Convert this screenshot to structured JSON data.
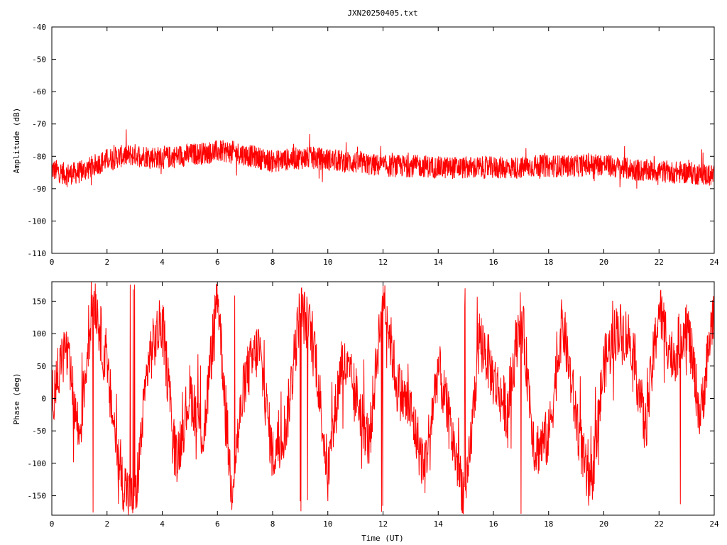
{
  "title": "JXN20250405.txt",
  "colors": {
    "series": "#ff0000",
    "axis": "#000000",
    "background": "#ffffff"
  },
  "chart_data": [
    {
      "type": "line",
      "ylabel": "Amplitude (dB)",
      "xlabel": "",
      "xlim": [
        0,
        24
      ],
      "ylim": [
        -110,
        -40
      ],
      "xticks": [
        0,
        2,
        4,
        6,
        8,
        10,
        12,
        14,
        16,
        18,
        20,
        22,
        24
      ],
      "yticks": [
        -110,
        -100,
        -90,
        -80,
        -70,
        -60,
        -50,
        -40
      ],
      "grid": false,
      "series": [
        {
          "color": "#ff0000",
          "style": "noisy band",
          "x": [
            0,
            0.5,
            1,
            1.5,
            2,
            2.5,
            3,
            3.5,
            4,
            4.5,
            5,
            5.5,
            6,
            6.5,
            7,
            7.5,
            8,
            8.5,
            9,
            9.5,
            10,
            10.5,
            11,
            11.5,
            12,
            12.5,
            13,
            13.5,
            14,
            14.5,
            15,
            15.5,
            16,
            16.5,
            17,
            17.5,
            18,
            18.5,
            19,
            19.5,
            20,
            20.5,
            21,
            21.5,
            22,
            22.5,
            23,
            23.5,
            24
          ],
          "mean": [
            -84,
            -85.5,
            -85,
            -83,
            -81,
            -80,
            -79.5,
            -80,
            -80.5,
            -80,
            -79.5,
            -79,
            -78.5,
            -78.5,
            -79.5,
            -80.5,
            -81.5,
            -81,
            -80.5,
            -80.5,
            -81,
            -81.5,
            -82,
            -82.5,
            -83,
            -83,
            -83,
            -83,
            -83.5,
            -83.5,
            -83.5,
            -83.5,
            -83.5,
            -83.5,
            -83.5,
            -83,
            -83,
            -83,
            -83,
            -82.5,
            -82.5,
            -83.5,
            -84,
            -84.5,
            -84.5,
            -85,
            -85,
            -85.5,
            -86
          ],
          "spread": 3.5
        }
      ]
    },
    {
      "type": "line",
      "ylabel": "Phase (deg)",
      "xlabel": "Time (UT)",
      "xlim": [
        0,
        24
      ],
      "ylim": [
        -180,
        180
      ],
      "xticks": [
        0,
        2,
        4,
        6,
        8,
        10,
        12,
        14,
        16,
        18,
        20,
        22,
        24
      ],
      "yticks": [
        -150,
        -100,
        -50,
        0,
        50,
        100,
        150
      ],
      "grid": false,
      "series": [
        {
          "color": "#ff0000",
          "style": "wrapping phase",
          "x": [
            0,
            0.5,
            1,
            1.5,
            2,
            2.5,
            3,
            3.5,
            4,
            4.5,
            5,
            5.5,
            6,
            6.5,
            7,
            7.5,
            8,
            8.5,
            9,
            9.5,
            10,
            10.5,
            11,
            11.5,
            12,
            12.5,
            13,
            13.5,
            14,
            14.5,
            15,
            15.5,
            16,
            16.5,
            17,
            17.5,
            18,
            18.5,
            19,
            19.5,
            20,
            20.5,
            21,
            21.5,
            22,
            22.5,
            23,
            23.5,
            24
          ],
          "values": [
            0,
            80,
            -60,
            170,
            40,
            -120,
            -170,
            60,
            120,
            -100,
            10,
            -60,
            170,
            -140,
            30,
            80,
            -90,
            -40,
            140,
            90,
            -120,
            60,
            10,
            -70,
            170,
            20,
            -20,
            -110,
            50,
            -60,
            -160,
            100,
            30,
            -20,
            140,
            -80,
            -60,
            120,
            -30,
            -150,
            50,
            110,
            90,
            -50,
            140,
            60,
            120,
            -30,
            150
          ]
        }
      ]
    }
  ]
}
